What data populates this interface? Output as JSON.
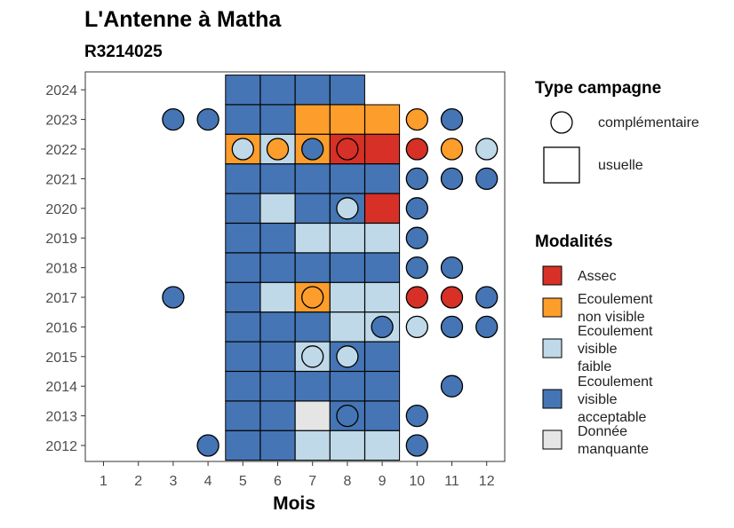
{
  "chart_data": {
    "type": "heatmap",
    "title": "L'Antenne à Matha",
    "subtitle": "R3214025",
    "xlabel": "Mois",
    "ylabel": "",
    "x_ticks": [
      "1",
      "2",
      "3",
      "4",
      "5",
      "6",
      "7",
      "8",
      "9",
      "10",
      "11",
      "12"
    ],
    "y_ticks": [
      "2012",
      "2013",
      "2014",
      "2015",
      "2016",
      "2017",
      "2018",
      "2019",
      "2020",
      "2021",
      "2022",
      "2023",
      "2024"
    ],
    "grid": false,
    "legend_shape": {
      "title": "Type campagne",
      "items": [
        {
          "label": "complémentaire",
          "shape": "circle"
        },
        {
          "label": "usuelle",
          "shape": "square"
        }
      ]
    },
    "legend_color": {
      "title": "Modalités",
      "items": [
        {
          "key": "assec",
          "lines": [
            "Assec"
          ],
          "color": "#d73027"
        },
        {
          "key": "nonvisible",
          "lines": [
            "Ecoulement",
            "non visible"
          ],
          "color": "#fd9d2b"
        },
        {
          "key": "faible",
          "lines": [
            "Ecoulement",
            "visible",
            "faible"
          ],
          "color": "#bfd9e8"
        },
        {
          "key": "acceptable",
          "lines": [
            "Ecoulement",
            "visible",
            "acceptable"
          ],
          "color": "#4575b4"
        },
        {
          "key": "manquante",
          "lines": [
            "Donnée",
            "manquante"
          ],
          "color": "#e5e5e5"
        }
      ]
    },
    "colors": {
      "assec": "#d73027",
      "nonvisible": "#fd9d2b",
      "faible": "#bfd9e8",
      "acceptable": "#4575b4",
      "manquante": "#e5e5e5"
    },
    "usuelle": [
      {
        "year": 2024,
        "month": 5,
        "value": "acceptable"
      },
      {
        "year": 2024,
        "month": 6,
        "value": "acceptable"
      },
      {
        "year": 2024,
        "month": 7,
        "value": "acceptable"
      },
      {
        "year": 2024,
        "month": 8,
        "value": "acceptable"
      },
      {
        "year": 2023,
        "month": 5,
        "value": "acceptable"
      },
      {
        "year": 2023,
        "month": 6,
        "value": "acceptable"
      },
      {
        "year": 2023,
        "month": 7,
        "value": "nonvisible"
      },
      {
        "year": 2023,
        "month": 8,
        "value": "nonvisible"
      },
      {
        "year": 2023,
        "month": 9,
        "value": "nonvisible"
      },
      {
        "year": 2022,
        "month": 5,
        "value": "nonvisible"
      },
      {
        "year": 2022,
        "month": 6,
        "value": "faible"
      },
      {
        "year": 2022,
        "month": 7,
        "value": "nonvisible"
      },
      {
        "year": 2022,
        "month": 8,
        "value": "assec"
      },
      {
        "year": 2022,
        "month": 9,
        "value": "assec"
      },
      {
        "year": 2021,
        "month": 5,
        "value": "acceptable"
      },
      {
        "year": 2021,
        "month": 6,
        "value": "acceptable"
      },
      {
        "year": 2021,
        "month": 7,
        "value": "acceptable"
      },
      {
        "year": 2021,
        "month": 8,
        "value": "acceptable"
      },
      {
        "year": 2021,
        "month": 9,
        "value": "acceptable"
      },
      {
        "year": 2020,
        "month": 5,
        "value": "acceptable"
      },
      {
        "year": 2020,
        "month": 6,
        "value": "faible"
      },
      {
        "year": 2020,
        "month": 7,
        "value": "acceptable"
      },
      {
        "year": 2020,
        "month": 8,
        "value": "acceptable"
      },
      {
        "year": 2020,
        "month": 9,
        "value": "assec"
      },
      {
        "year": 2019,
        "month": 5,
        "value": "acceptable"
      },
      {
        "year": 2019,
        "month": 6,
        "value": "acceptable"
      },
      {
        "year": 2019,
        "month": 7,
        "value": "faible"
      },
      {
        "year": 2019,
        "month": 8,
        "value": "faible"
      },
      {
        "year": 2019,
        "month": 9,
        "value": "faible"
      },
      {
        "year": 2018,
        "month": 5,
        "value": "acceptable"
      },
      {
        "year": 2018,
        "month": 6,
        "value": "acceptable"
      },
      {
        "year": 2018,
        "month": 7,
        "value": "acceptable"
      },
      {
        "year": 2018,
        "month": 8,
        "value": "acceptable"
      },
      {
        "year": 2018,
        "month": 9,
        "value": "acceptable"
      },
      {
        "year": 2017,
        "month": 5,
        "value": "acceptable"
      },
      {
        "year": 2017,
        "month": 6,
        "value": "faible"
      },
      {
        "year": 2017,
        "month": 7,
        "value": "nonvisible"
      },
      {
        "year": 2017,
        "month": 8,
        "value": "faible"
      },
      {
        "year": 2017,
        "month": 9,
        "value": "faible"
      },
      {
        "year": 2016,
        "month": 5,
        "value": "acceptable"
      },
      {
        "year": 2016,
        "month": 6,
        "value": "acceptable"
      },
      {
        "year": 2016,
        "month": 7,
        "value": "acceptable"
      },
      {
        "year": 2016,
        "month": 8,
        "value": "faible"
      },
      {
        "year": 2016,
        "month": 9,
        "value": "faible"
      },
      {
        "year": 2015,
        "month": 5,
        "value": "acceptable"
      },
      {
        "year": 2015,
        "month": 6,
        "value": "acceptable"
      },
      {
        "year": 2015,
        "month": 7,
        "value": "faible"
      },
      {
        "year": 2015,
        "month": 8,
        "value": "acceptable"
      },
      {
        "year": 2015,
        "month": 9,
        "value": "acceptable"
      },
      {
        "year": 2014,
        "month": 5,
        "value": "acceptable"
      },
      {
        "year": 2014,
        "month": 6,
        "value": "acceptable"
      },
      {
        "year": 2014,
        "month": 7,
        "value": "acceptable"
      },
      {
        "year": 2014,
        "month": 8,
        "value": "acceptable"
      },
      {
        "year": 2014,
        "month": 9,
        "value": "acceptable"
      },
      {
        "year": 2013,
        "month": 5,
        "value": "acceptable"
      },
      {
        "year": 2013,
        "month": 6,
        "value": "acceptable"
      },
      {
        "year": 2013,
        "month": 7,
        "value": "manquante"
      },
      {
        "year": 2013,
        "month": 8,
        "value": "acceptable"
      },
      {
        "year": 2013,
        "month": 9,
        "value": "acceptable"
      },
      {
        "year": 2012,
        "month": 5,
        "value": "acceptable"
      },
      {
        "year": 2012,
        "month": 6,
        "value": "acceptable"
      },
      {
        "year": 2012,
        "month": 7,
        "value": "faible"
      },
      {
        "year": 2012,
        "month": 8,
        "value": "faible"
      },
      {
        "year": 2012,
        "month": 9,
        "value": "faible"
      }
    ],
    "complementaire": [
      {
        "year": 2023,
        "month": 3,
        "value": "acceptable"
      },
      {
        "year": 2023,
        "month": 4,
        "value": "acceptable"
      },
      {
        "year": 2023,
        "month": 10,
        "value": "nonvisible"
      },
      {
        "year": 2023,
        "month": 11,
        "value": "acceptable"
      },
      {
        "year": 2022,
        "month": 5,
        "value": "faible"
      },
      {
        "year": 2022,
        "month": 6,
        "value": "nonvisible"
      },
      {
        "year": 2022,
        "month": 7,
        "value": "acceptable"
      },
      {
        "year": 2022,
        "month": 8,
        "value": "assec"
      },
      {
        "year": 2022,
        "month": 10,
        "value": "assec"
      },
      {
        "year": 2022,
        "month": 11,
        "value": "nonvisible"
      },
      {
        "year": 2022,
        "month": 12,
        "value": "faible"
      },
      {
        "year": 2021,
        "month": 10,
        "value": "acceptable"
      },
      {
        "year": 2021,
        "month": 11,
        "value": "acceptable"
      },
      {
        "year": 2021,
        "month": 12,
        "value": "acceptable"
      },
      {
        "year": 2020,
        "month": 8,
        "value": "faible"
      },
      {
        "year": 2020,
        "month": 10,
        "value": "acceptable"
      },
      {
        "year": 2019,
        "month": 10,
        "value": "acceptable"
      },
      {
        "year": 2018,
        "month": 10,
        "value": "acceptable"
      },
      {
        "year": 2018,
        "month": 11,
        "value": "acceptable"
      },
      {
        "year": 2017,
        "month": 3,
        "value": "acceptable"
      },
      {
        "year": 2017,
        "month": 7,
        "value": "nonvisible"
      },
      {
        "year": 2017,
        "month": 10,
        "value": "assec"
      },
      {
        "year": 2017,
        "month": 11,
        "value": "assec"
      },
      {
        "year": 2017,
        "month": 12,
        "value": "acceptable"
      },
      {
        "year": 2016,
        "month": 9,
        "value": "acceptable"
      },
      {
        "year": 2016,
        "month": 10,
        "value": "faible"
      },
      {
        "year": 2016,
        "month": 11,
        "value": "acceptable"
      },
      {
        "year": 2016,
        "month": 12,
        "value": "acceptable"
      },
      {
        "year": 2015,
        "month": 7,
        "value": "faible"
      },
      {
        "year": 2015,
        "month": 8,
        "value": "faible"
      },
      {
        "year": 2014,
        "month": 11,
        "value": "acceptable"
      },
      {
        "year": 2013,
        "month": 8,
        "value": "acceptable"
      },
      {
        "year": 2013,
        "month": 10,
        "value": "acceptable"
      },
      {
        "year": 2012,
        "month": 4,
        "value": "acceptable"
      },
      {
        "year": 2012,
        "month": 10,
        "value": "acceptable"
      }
    ]
  }
}
